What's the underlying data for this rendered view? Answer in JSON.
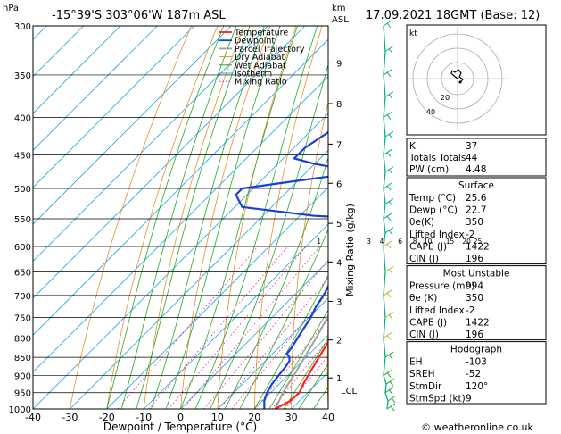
{
  "header": {
    "location": "-15°39'S 303°06'W 187m ASL",
    "datetime": "17.09.2021 18GMT (Base: 12)",
    "left_unit": "hPa",
    "right_unit_km": "km",
    "right_unit_asl": "ASL"
  },
  "footer": {
    "credit": "© weatheronline.co.uk"
  },
  "chart_data": {
    "type": "line",
    "xlabel": "Dewpoint / Temperature (°C)",
    "right_axis_label": "Mixing Ratio (g/kg)",
    "xlim": [
      -40,
      40
    ],
    "ylim": [
      1000,
      300
    ],
    "x_ticks": [
      "-40",
      "-30",
      "-20",
      "-10",
      "0",
      "10",
      "20",
      "30",
      "40"
    ],
    "pressure_ticks": [
      "300",
      "350",
      "400",
      "450",
      "500",
      "550",
      "600",
      "650",
      "700",
      "750",
      "800",
      "850",
      "900",
      "950",
      "1000"
    ],
    "km_ticks": [
      {
        "label": "9",
        "p": 337
      },
      {
        "label": "8",
        "p": 383
      },
      {
        "label": "7",
        "p": 435
      },
      {
        "label": "6",
        "p": 492
      },
      {
        "label": "5",
        "p": 558
      },
      {
        "label": "4",
        "p": 630
      },
      {
        "label": "3",
        "p": 713
      },
      {
        "label": "2",
        "p": 805
      },
      {
        "label": "1",
        "p": 907
      }
    ],
    "lcl_label": "LCL",
    "lcl_p": 943,
    "mixing_ratio_labels": [
      {
        "label": "1",
        "x": -6.5
      },
      {
        "label": "2",
        "x": 2
      },
      {
        "label": "3",
        "x": 7
      },
      {
        "label": "4",
        "x": 10.5
      },
      {
        "label": "6",
        "x": 15.5
      },
      {
        "label": "8",
        "x": 19.5
      },
      {
        "label": "10",
        "x": 23
      },
      {
        "label": "15",
        "x": 29
      },
      {
        "label": "20",
        "x": 33.5
      },
      {
        "label": "25",
        "x": 36.5
      }
    ],
    "legend": [
      "Temperature",
      "Dewpoint",
      "Parcel Trajectory",
      "Dry Adiabat",
      "Wet Adiabat",
      "Isotherm",
      "Mixing Ratio"
    ],
    "colors": {
      "temperature": "#ff2020",
      "dewpoint": "#1a3fd6",
      "parcel": "#a0a0a0",
      "dry_adiabat": "#e8902a",
      "wet_adiabat": "#22aa22",
      "isotherm": "#22a8e0",
      "mixing_ratio": "#e0209a",
      "wind": "#00b090"
    },
    "series": [
      {
        "name": "Temperature",
        "points": [
          [
            1000,
            25.6
          ],
          [
            975,
            27.5
          ],
          [
            950,
            27.8
          ],
          [
            925,
            26.5
          ],
          [
            900,
            25.5
          ],
          [
            875,
            24.5
          ],
          [
            850,
            23.5
          ],
          [
            825,
            22.5
          ],
          [
            800,
            21.5
          ],
          [
            775,
            18.5
          ],
          [
            750,
            16
          ],
          [
            725,
            13.5
          ],
          [
            700,
            11
          ],
          [
            675,
            8.5
          ],
          [
            650,
            6
          ],
          [
            625,
            3.5
          ],
          [
            600,
            1
          ],
          [
            575,
            -1.5
          ],
          [
            560,
            -3
          ],
          [
            550,
            -5
          ],
          [
            540,
            -5.8
          ],
          [
            520,
            -5
          ],
          [
            500,
            -5.5
          ],
          [
            480,
            -8
          ],
          [
            470,
            -8
          ],
          [
            455,
            -9.5
          ],
          [
            430,
            -13
          ],
          [
            400,
            -17
          ],
          [
            375,
            -20
          ],
          [
            350,
            -23.5
          ],
          [
            325,
            -27
          ],
          [
            300,
            -31
          ]
        ]
      },
      {
        "name": "Dewpoint",
        "points": [
          [
            1000,
            22.7
          ],
          [
            975,
            20.5
          ],
          [
            950,
            19
          ],
          [
            925,
            18
          ],
          [
            900,
            17.5
          ],
          [
            875,
            17
          ],
          [
            860,
            16.5
          ],
          [
            850,
            15.5
          ],
          [
            840,
            13.8
          ],
          [
            825,
            13.5
          ],
          [
            800,
            12.5
          ],
          [
            775,
            11.5
          ],
          [
            750,
            10.5
          ],
          [
            725,
            9
          ],
          [
            700,
            8
          ],
          [
            675,
            6.5
          ],
          [
            650,
            5
          ],
          [
            625,
            2.5
          ],
          [
            600,
            0
          ],
          [
            575,
            -3
          ],
          [
            560,
            -5
          ],
          [
            548,
            -6
          ],
          [
            545,
            -16
          ],
          [
            530,
            -38
          ],
          [
            510,
            -43
          ],
          [
            500,
            -43
          ],
          [
            488,
            -30
          ],
          [
            475,
            -15
          ],
          [
            463,
            -30
          ],
          [
            455,
            -37
          ],
          [
            440,
            -37
          ],
          [
            420,
            -35
          ],
          [
            400,
            -34
          ],
          [
            375,
            -37
          ],
          [
            350,
            -41
          ],
          [
            325,
            -45
          ],
          [
            300,
            -50
          ]
        ]
      },
      {
        "name": "Parcel Trajectory",
        "points": [
          [
            1000,
            25.6
          ],
          [
            975,
            24.5
          ],
          [
            950,
            23.3
          ],
          [
            925,
            22.4
          ],
          [
            900,
            21.6
          ],
          [
            850,
            19.6
          ],
          [
            800,
            17.5
          ],
          [
            750,
            15
          ],
          [
            700,
            12.4
          ],
          [
            650,
            9.5
          ],
          [
            600,
            6.3
          ],
          [
            550,
            2.6
          ],
          [
            500,
            -1.7
          ],
          [
            450,
            -7
          ],
          [
            400,
            -13.3
          ],
          [
            350,
            -21.5
          ],
          [
            300,
            -31.5
          ]
        ]
      }
    ],
    "skewt_indices": [
      {
        "label": "K",
        "value": "37"
      },
      {
        "label": "Totals Totals",
        "value": "44"
      },
      {
        "label": "PW (cm)",
        "value": "4.48"
      }
    ],
    "surface_title": "Surface",
    "surface": [
      {
        "label": "Temp (°C)",
        "value": "25.6"
      },
      {
        "label": "Dewp (°C)",
        "value": "22.7"
      },
      {
        "label": "θe(K)",
        "value": "350"
      },
      {
        "label": "Lifted Index",
        "value": "-2"
      },
      {
        "label": "CAPE (J)",
        "value": "1422"
      },
      {
        "label": "CIN (J)",
        "value": "196"
      }
    ],
    "unstable_title": "Most Unstable",
    "most_unstable": [
      {
        "label": "Pressure (mb)",
        "value": "994"
      },
      {
        "label": "θe (K)",
        "value": "350"
      },
      {
        "label": "Lifted Index",
        "value": "-2"
      },
      {
        "label": "CAPE (J)",
        "value": "1422"
      },
      {
        "label": "CIN (J)",
        "value": "196"
      }
    ],
    "hodo_title": "Hodograph",
    "hodograph": [
      {
        "label": "EH",
        "value": "-103"
      },
      {
        "label": "SREH",
        "value": "-52"
      },
      {
        "label": "StmDir",
        "value": "120°"
      },
      {
        "label": "StmSpd (kt)",
        "value": "9"
      }
    ],
    "hodo_unit": "kt",
    "hodo_ring_labels": [
      "20",
      "40"
    ]
  }
}
